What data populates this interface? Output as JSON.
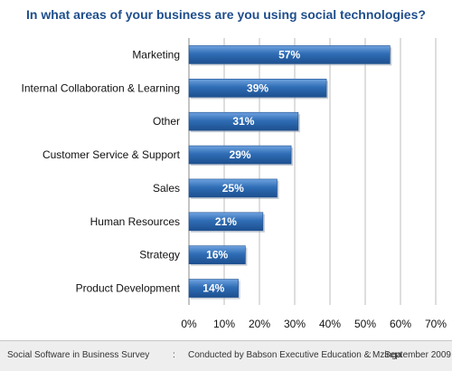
{
  "chart_data": {
    "type": "bar",
    "orientation": "horizontal",
    "title": "In what areas of your business are you using social technologies?",
    "categories": [
      "Marketing",
      "Internal Collaboration & Learning",
      "Other",
      "Customer Service & Support",
      "Sales",
      "Human Resources",
      "Strategy",
      "Product Development"
    ],
    "values": [
      57,
      39,
      31,
      29,
      25,
      21,
      16,
      14
    ],
    "value_labels": [
      "57%",
      "39%",
      "31%",
      "29%",
      "25%",
      "21%",
      "16%",
      "14%"
    ],
    "xlim": [
      0,
      70
    ],
    "xticks": [
      "0%",
      "10%",
      "20%",
      "30%",
      "40%",
      "50%",
      "60%",
      "70%"
    ],
    "grid": true,
    "bar_color": "#2f6db5"
  },
  "footer": {
    "survey": "Social Software in Business Survey",
    "sep1": ":",
    "conducted": "Conducted by Babson Executive Education & Mzinga",
    "sep2": ":",
    "date": "September 2009"
  }
}
